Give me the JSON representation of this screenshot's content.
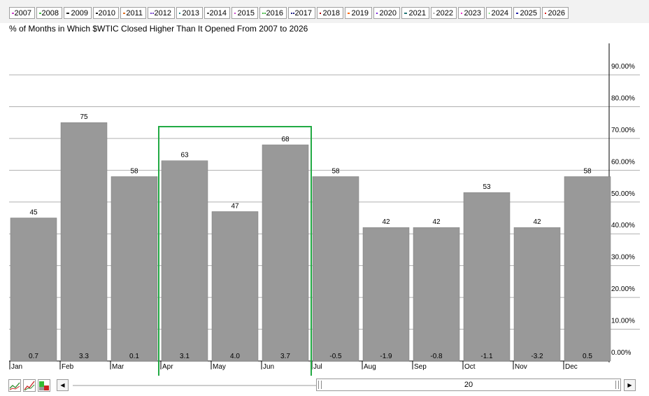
{
  "legend": {
    "items": [
      {
        "label": "2007",
        "color": "#cc44cc"
      },
      {
        "label": "2008",
        "color": "#44bb44"
      },
      {
        "label": "2009",
        "color": "#222222"
      },
      {
        "label": "2010",
        "color": "#222222"
      },
      {
        "label": "2011",
        "color": "#e07020"
      },
      {
        "label": "2012",
        "color": "#7744cc"
      },
      {
        "label": "2013",
        "color": "#228888"
      },
      {
        "label": "2014",
        "color": "#555555"
      },
      {
        "label": "2015",
        "color": "#cc44cc"
      },
      {
        "label": "2016",
        "color": "#44bb44"
      },
      {
        "label": "2017",
        "color": "#222288"
      },
      {
        "label": "2018",
        "color": "#aa0000"
      },
      {
        "label": "2019",
        "color": "#ff6600"
      },
      {
        "label": "2020",
        "color": "#7722dd"
      },
      {
        "label": "2021",
        "color": "#227777"
      },
      {
        "label": "2022",
        "color": "#666666"
      },
      {
        "label": "2023",
        "color": "#ee33cc"
      },
      {
        "label": "2024",
        "color": "#33cc33"
      },
      {
        "label": "2025",
        "color": "#2222aa"
      },
      {
        "label": "2026",
        "color": "#dd2222"
      }
    ]
  },
  "chart_data": {
    "type": "bar",
    "title": "% of Months in Which $WTIC Closed Higher Than It Opened From 2007 to 2026",
    "categories": [
      "Jan",
      "Feb",
      "Mar",
      "Apr",
      "May",
      "Jun",
      "Jul",
      "Aug",
      "Sep",
      "Oct",
      "Nov",
      "Dec"
    ],
    "values": [
      45,
      75,
      58,
      63,
      47,
      68,
      58,
      42,
      42,
      53,
      42,
      58
    ],
    "value_labels": [
      "45",
      "75",
      "58",
      "63",
      "47",
      "68",
      "58",
      "42",
      "42",
      "53",
      "42",
      "58"
    ],
    "avg_change_labels": [
      "0.7",
      "3.3",
      "0.1",
      "3.1",
      "4.0",
      "3.7",
      "-0.5",
      "-1.9",
      "-0.8",
      "-1.1",
      "-3.2",
      "0.5"
    ],
    "y_ticks": [
      0,
      10,
      20,
      30,
      40,
      50,
      60,
      70,
      80,
      90
    ],
    "y_tick_labels": [
      "0.00%",
      "10.00%",
      "20.00%",
      "30.00%",
      "40.00%",
      "50.00%",
      "60.00%",
      "70.00%",
      "80.00%",
      "90.00%"
    ],
    "ylim": [
      0,
      100
    ],
    "grid": true,
    "axis_position": "right",
    "bar_color": "#999999",
    "highlight": {
      "from": "Apr",
      "to": "Jun",
      "color": "#22aa44"
    }
  },
  "footer": {
    "scroll_left": "◀",
    "scroll_right": "▶",
    "period_value": "20"
  }
}
